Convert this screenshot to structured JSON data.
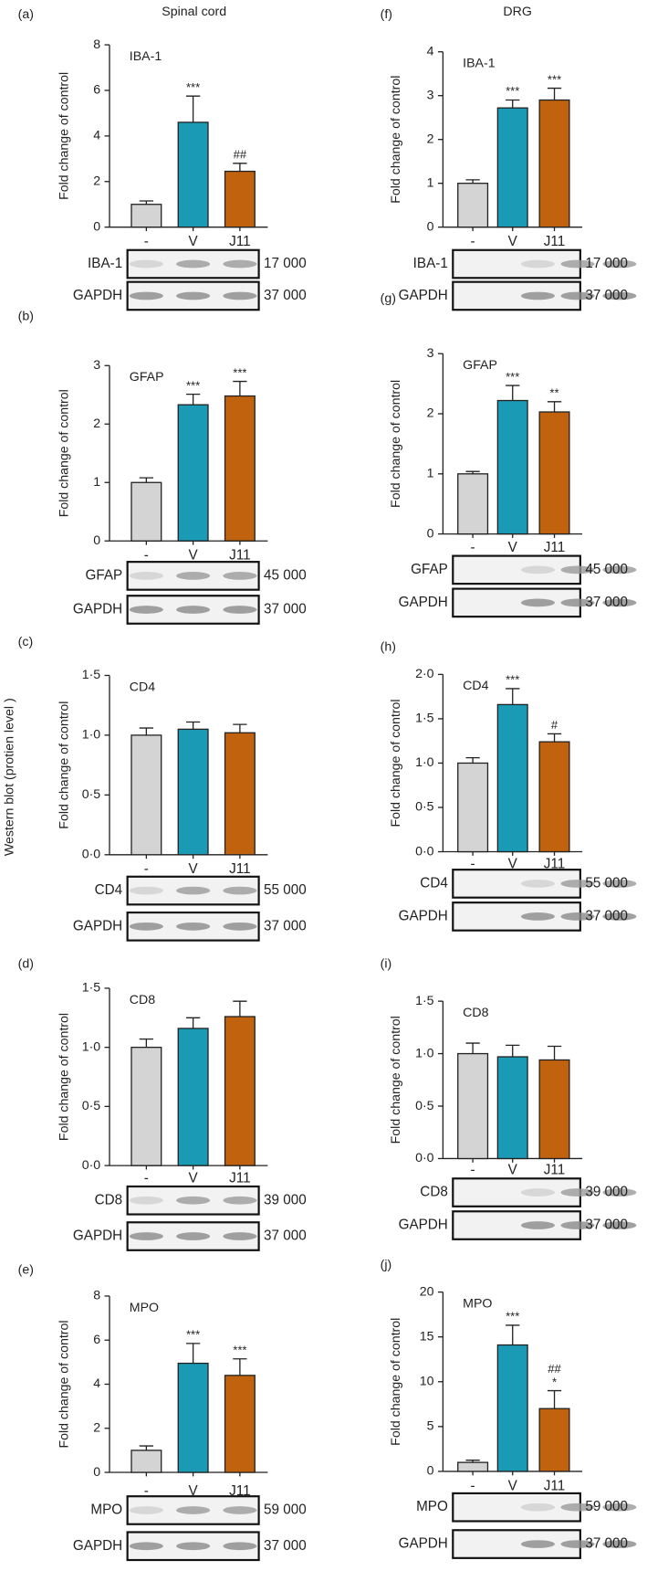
{
  "column_titles": [
    "Spinal cord",
    "DRG"
  ],
  "side_label": "Western blot (protien level )",
  "chart_data": [
    {
      "type": "bar",
      "panel": "(a)",
      "title": "IBA-1",
      "ylabel": "Fold change of control",
      "categories": [
        "-",
        "V",
        "J11"
      ],
      "values": [
        1.0,
        4.6,
        2.45
      ],
      "errors": [
        0.15,
        1.15,
        0.35
      ],
      "annotations": [
        [],
        [
          "***"
        ],
        [
          "##"
        ]
      ],
      "colors": [
        "#d4d4d4",
        "#1a9ab5",
        "#c0620e"
      ],
      "ylim": [
        0,
        8
      ],
      "yticks": [
        0,
        2,
        4,
        6,
        8
      ],
      "blots": [
        {
          "protein": "IBA-1",
          "weight": "17 000"
        },
        {
          "protein": "GAPDH",
          "weight": "37 000"
        }
      ]
    },
    {
      "type": "bar",
      "panel": "(b)",
      "title": "GFAP",
      "ylabel": "Fold change of control",
      "categories": [
        "-",
        "V",
        "J11"
      ],
      "values": [
        1.0,
        2.33,
        2.48
      ],
      "errors": [
        0.08,
        0.18,
        0.25
      ],
      "annotations": [
        [],
        [
          "***"
        ],
        [
          "***"
        ]
      ],
      "colors": [
        "#d4d4d4",
        "#1a9ab5",
        "#c0620e"
      ],
      "ylim": [
        0,
        3
      ],
      "yticks": [
        0,
        1,
        2,
        3
      ],
      "blots": [
        {
          "protein": "GFAP",
          "weight": "45 000"
        },
        {
          "protein": "GAPDH",
          "weight": "37 000"
        }
      ]
    },
    {
      "type": "bar",
      "panel": "(c)",
      "title": "CD4",
      "ylabel": "Fold change of control",
      "categories": [
        "-",
        "V",
        "J11"
      ],
      "values": [
        1.0,
        1.05,
        1.02
      ],
      "errors": [
        0.06,
        0.06,
        0.07
      ],
      "annotations": [
        [],
        [],
        []
      ],
      "colors": [
        "#d4d4d4",
        "#1a9ab5",
        "#c0620e"
      ],
      "ylim": [
        0,
        1.5
      ],
      "yticks": [
        {
          "value": 0,
          "label": "0·0"
        },
        {
          "value": 0.5,
          "label": "0·5"
        },
        {
          "value": 1,
          "label": "1·0"
        },
        {
          "value": 1.5,
          "label": "1·5"
        }
      ],
      "blots": [
        {
          "protein": "CD4",
          "weight": "55 000"
        },
        {
          "protein": "GAPDH",
          "weight": "37 000"
        }
      ]
    },
    {
      "type": "bar",
      "panel": "(d)",
      "title": "CD8",
      "ylabel": "Fold change of control",
      "categories": [
        "-",
        "V",
        "J11"
      ],
      "values": [
        1.0,
        1.16,
        1.26
      ],
      "errors": [
        0.07,
        0.09,
        0.13
      ],
      "annotations": [
        [],
        [],
        []
      ],
      "colors": [
        "#d4d4d4",
        "#1a9ab5",
        "#c0620e"
      ],
      "ylim": [
        0,
        1.5
      ],
      "yticks": [
        {
          "value": 0,
          "label": "0·0"
        },
        {
          "value": 0.5,
          "label": "0·5"
        },
        {
          "value": 1,
          "label": "1·0"
        },
        {
          "value": 1.5,
          "label": "1·5"
        }
      ],
      "blots": [
        {
          "protein": "CD8",
          "weight": "39 000"
        },
        {
          "protein": "GAPDH",
          "weight": "37 000"
        }
      ]
    },
    {
      "type": "bar",
      "panel": "(e)",
      "title": "MPO",
      "ylabel": "Fold change of control",
      "categories": [
        "-",
        "V",
        "J11"
      ],
      "values": [
        1.0,
        4.95,
        4.4
      ],
      "errors": [
        0.2,
        0.9,
        0.75
      ],
      "annotations": [
        [],
        [
          "***"
        ],
        [
          "***"
        ]
      ],
      "colors": [
        "#d4d4d4",
        "#1a9ab5",
        "#c0620e"
      ],
      "ylim": [
        0,
        8
      ],
      "yticks": [
        0,
        2,
        4,
        6,
        8
      ],
      "blots": [
        {
          "protein": "MPO",
          "weight": "59 000"
        },
        {
          "protein": "GAPDH",
          "weight": "37 000"
        }
      ]
    },
    {
      "type": "bar",
      "panel": "(f)",
      "title": "IBA-1",
      "ylabel": "Fold change of control",
      "categories": [
        "-",
        "V",
        "J11"
      ],
      "values": [
        1.0,
        2.72,
        2.9
      ],
      "errors": [
        0.08,
        0.18,
        0.27
      ],
      "annotations": [
        [],
        [
          "***"
        ],
        [
          "***"
        ]
      ],
      "colors": [
        "#d4d4d4",
        "#1a9ab5",
        "#c0620e"
      ],
      "ylim": [
        0,
        4
      ],
      "yticks": [
        0,
        1,
        2,
        3,
        4
      ],
      "blots": [
        {
          "protein": "IBA-1",
          "weight": "17 000"
        },
        {
          "protein": "GAPDH",
          "weight": "37 000"
        }
      ]
    },
    {
      "type": "bar",
      "panel": "(g)",
      "title": "GFAP",
      "ylabel": "Fold change of control",
      "categories": [
        "-",
        "V",
        "J11"
      ],
      "values": [
        1.0,
        2.22,
        2.03
      ],
      "errors": [
        0.04,
        0.25,
        0.17
      ],
      "annotations": [
        [],
        [
          "***"
        ],
        [
          "**"
        ]
      ],
      "colors": [
        "#d4d4d4",
        "#1a9ab5",
        "#c0620e"
      ],
      "ylim": [
        0,
        3
      ],
      "yticks": [
        0,
        1,
        2,
        3
      ],
      "blots": [
        {
          "protein": "GFAP",
          "weight": "45 000"
        },
        {
          "protein": "GAPDH",
          "weight": "37 000"
        }
      ]
    },
    {
      "type": "bar",
      "panel": "(h)",
      "title": "CD4",
      "ylabel": "Fold change of control",
      "categories": [
        "-",
        "V",
        "J11"
      ],
      "values": [
        1.0,
        1.66,
        1.24
      ],
      "errors": [
        0.06,
        0.18,
        0.09
      ],
      "annotations": [
        [],
        [
          "***"
        ],
        [
          "#"
        ]
      ],
      "colors": [
        "#d4d4d4",
        "#1a9ab5",
        "#c0620e"
      ],
      "ylim": [
        0,
        2
      ],
      "yticks": [
        {
          "value": 0,
          "label": "0·0"
        },
        {
          "value": 0.5,
          "label": "0·5"
        },
        {
          "value": 1,
          "label": "1·0"
        },
        {
          "value": 1.5,
          "label": "1·5"
        },
        {
          "value": 2,
          "label": "2·0"
        }
      ],
      "blots": [
        {
          "protein": "CD4",
          "weight": "55 000"
        },
        {
          "protein": "GAPDH",
          "weight": "37 000"
        }
      ]
    },
    {
      "type": "bar",
      "panel": "(i)",
      "title": "CD8",
      "ylabel": "Fold change of control",
      "categories": [
        "-",
        "V",
        "J11"
      ],
      "values": [
        1.0,
        0.97,
        0.94
      ],
      "errors": [
        0.1,
        0.11,
        0.13
      ],
      "annotations": [
        [],
        [],
        []
      ],
      "colors": [
        "#d4d4d4",
        "#1a9ab5",
        "#c0620e"
      ],
      "ylim": [
        0,
        1.5
      ],
      "yticks": [
        {
          "value": 0,
          "label": "0·0"
        },
        {
          "value": 0.5,
          "label": "0·5"
        },
        {
          "value": 1,
          "label": "1·0"
        },
        {
          "value": 1.5,
          "label": "1·5"
        }
      ],
      "blots": [
        {
          "protein": "CD8",
          "weight": "39 000"
        },
        {
          "protein": "GAPDH",
          "weight": "37 000"
        }
      ]
    },
    {
      "type": "bar",
      "panel": "(j)",
      "title": "MPO",
      "ylabel": "Fold change of control",
      "categories": [
        "-",
        "V",
        "J11"
      ],
      "values": [
        1.0,
        14.1,
        7.0
      ],
      "errors": [
        0.25,
        2.2,
        2.0
      ],
      "annotations": [
        [],
        [
          "***"
        ],
        [
          "##",
          "*"
        ]
      ],
      "colors": [
        "#d4d4d4",
        "#1a9ab5",
        "#c0620e"
      ],
      "ylim": [
        0,
        20
      ],
      "yticks": [
        0,
        5,
        10,
        15,
        20
      ],
      "blots": [
        {
          "protein": "MPO",
          "weight": "59 000"
        },
        {
          "protein": "GAPDH",
          "weight": "37 000"
        }
      ]
    }
  ]
}
